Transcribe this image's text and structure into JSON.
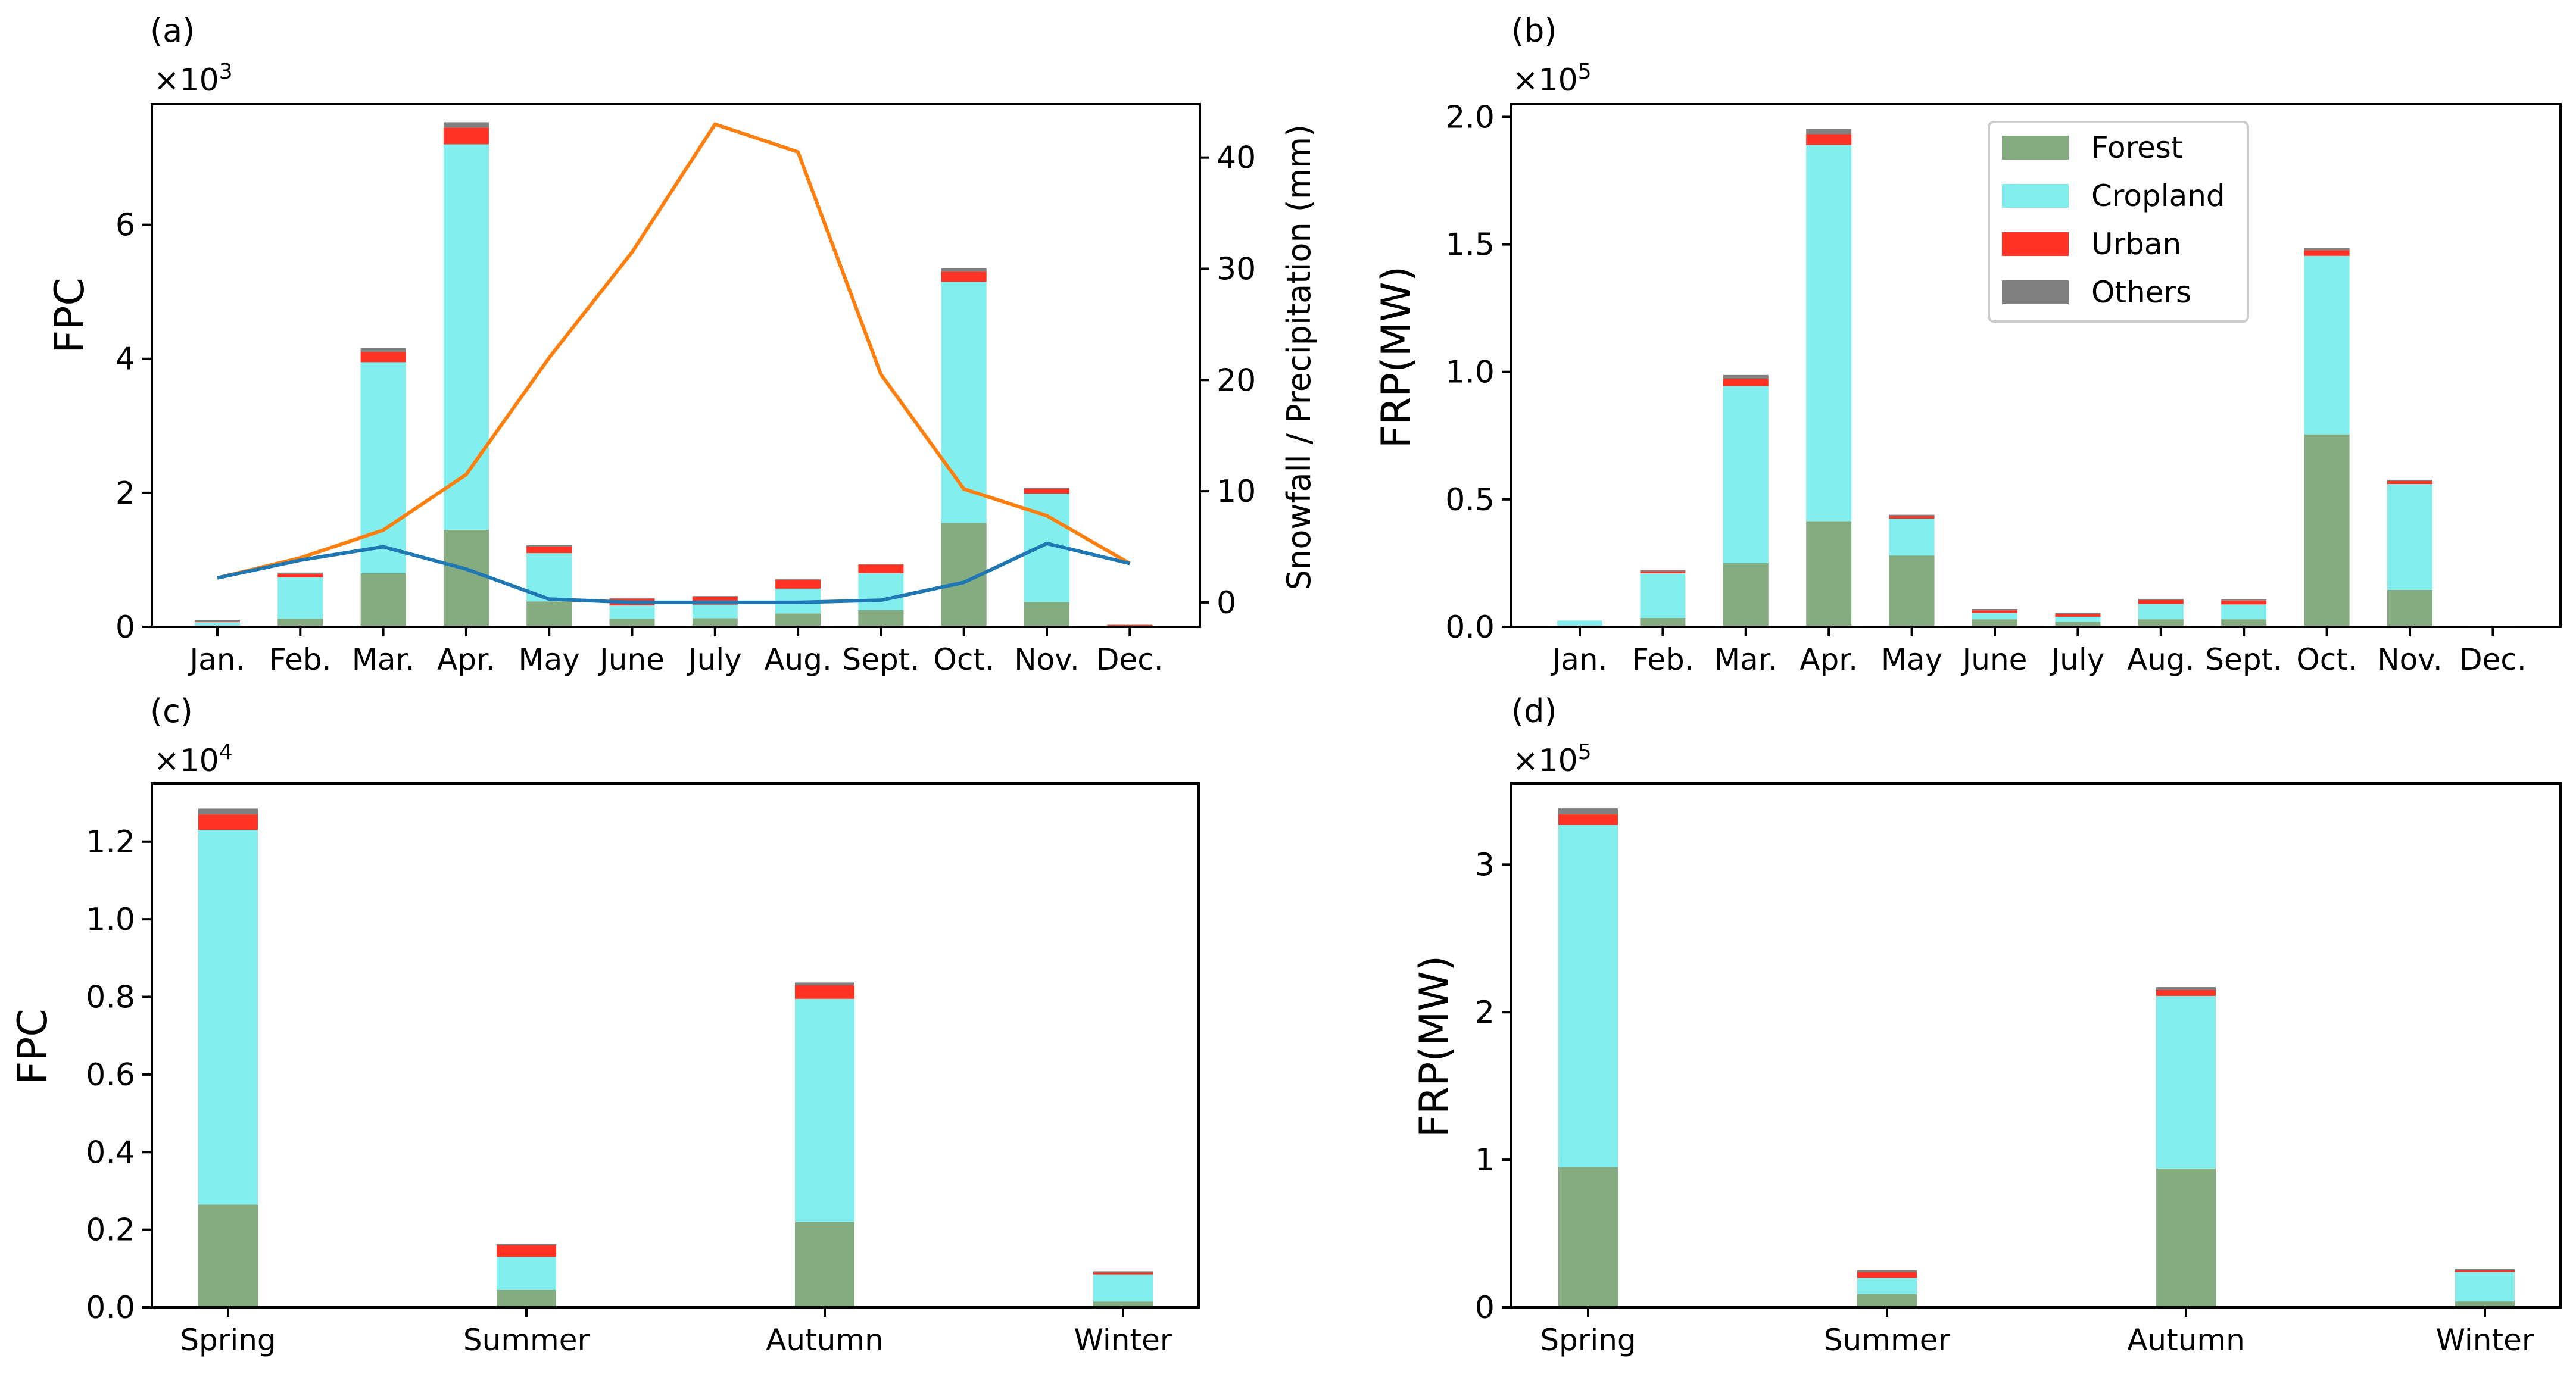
{
  "colors": {
    "forest": "#85ab80",
    "cropland": "#82eeee",
    "urban": "#ff3224",
    "others": "#808080",
    "precip": "#ff7f0e",
    "snowfall": "#1f77b4"
  },
  "legend": [
    "Forest",
    "Cropland",
    "Urban",
    "Others"
  ],
  "chart_data": [
    {
      "id": "a",
      "panel_label": "(a)",
      "type": "bar",
      "stacked": true,
      "title": "",
      "xlabel": "",
      "ylabel": "FPC",
      "scale_label": "×10",
      "scale_exp": "3",
      "ylim": [
        0,
        7.8
      ],
      "yticks": [
        0,
        2,
        4,
        6
      ],
      "categories": [
        "Jan.",
        "Feb.",
        "Mar.",
        "Apr.",
        "May",
        "June",
        "July",
        "Aug.",
        "Sept.",
        "Oct.",
        "Nov.",
        "Dec."
      ],
      "series": [
        {
          "name": "Forest",
          "values": [
            0.02,
            0.12,
            0.8,
            1.45,
            0.38,
            0.12,
            0.13,
            0.2,
            0.25,
            1.55,
            0.37,
            0.0
          ]
        },
        {
          "name": "Cropland",
          "values": [
            0.05,
            0.62,
            3.15,
            5.75,
            0.72,
            0.2,
            0.2,
            0.37,
            0.55,
            3.6,
            1.62,
            0.0
          ]
        },
        {
          "name": "Urban",
          "values": [
            0.01,
            0.05,
            0.15,
            0.25,
            0.1,
            0.1,
            0.12,
            0.13,
            0.13,
            0.15,
            0.07,
            0.03
          ]
        },
        {
          "name": "Others",
          "values": [
            0.02,
            0.02,
            0.06,
            0.08,
            0.02,
            0.01,
            0.01,
            0.01,
            0.01,
            0.05,
            0.02,
            0.0
          ]
        }
      ],
      "secondary_axis": {
        "ylabel": "Snowfall / Precipitation (mm)",
        "ylim": [
          -2.2,
          44.8
        ],
        "yticks": [
          0,
          10,
          20,
          30,
          40
        ],
        "lines": [
          {
            "name": "Precipitation",
            "values": [
              2.2,
              4.0,
              6.5,
              11.5,
              22.0,
              31.5,
              43.0,
              40.5,
              20.5,
              10.2,
              7.8,
              3.5
            ]
          },
          {
            "name": "Snowfall",
            "values": [
              2.2,
              3.8,
              5.0,
              3.0,
              0.3,
              0.0,
              0.0,
              0.0,
              0.2,
              1.8,
              5.3,
              3.5
            ]
          }
        ]
      }
    },
    {
      "id": "b",
      "panel_label": "(b)",
      "type": "bar",
      "stacked": true,
      "title": "",
      "xlabel": "",
      "ylabel": "FRP(MW)",
      "scale_label": "×10",
      "scale_exp": "5",
      "ylim": [
        0,
        2.05
      ],
      "yticks": [
        0.0,
        0.5,
        1.0,
        1.5,
        2.0
      ],
      "ytick_labels": [
        "0.0",
        "0.5",
        "1.0",
        "1.5",
        "2.0"
      ],
      "legend_position": "top-right",
      "categories": [
        "Jan.",
        "Feb.",
        "Mar.",
        "Apr.",
        "May",
        "June",
        "July",
        "Aug.",
        "Sept.",
        "Oct.",
        "Nov.",
        "Dec."
      ],
      "series": [
        {
          "name": "Forest",
          "values": [
            0.003,
            0.035,
            0.25,
            0.415,
            0.28,
            0.03,
            0.02,
            0.03,
            0.03,
            0.755,
            0.145,
            0.0
          ]
        },
        {
          "name": "Cropland",
          "values": [
            0.022,
            0.175,
            0.695,
            1.475,
            0.145,
            0.025,
            0.02,
            0.06,
            0.058,
            0.7,
            0.415,
            0.005
          ]
        },
        {
          "name": "Urban",
          "values": [
            0.0,
            0.008,
            0.028,
            0.042,
            0.01,
            0.01,
            0.01,
            0.015,
            0.015,
            0.022,
            0.012,
            0.0
          ]
        },
        {
          "name": "Others",
          "values": [
            0.0,
            0.005,
            0.015,
            0.022,
            0.005,
            0.005,
            0.005,
            0.005,
            0.005,
            0.01,
            0.005,
            0.0
          ]
        }
      ]
    },
    {
      "id": "c",
      "panel_label": "(c)",
      "type": "bar",
      "stacked": true,
      "title": "",
      "xlabel": "",
      "ylabel": "FPC",
      "scale_label": "×10",
      "scale_exp": "4",
      "ylim": [
        0,
        1.35
      ],
      "yticks": [
        0.0,
        0.2,
        0.4,
        0.6,
        0.8,
        1.0,
        1.2
      ],
      "ytick_labels": [
        "0.0",
        "0.2",
        "0.4",
        "0.6",
        "0.8",
        "1.0",
        "1.2"
      ],
      "categories": [
        "Spring",
        "Summer",
        "Autumn",
        "Winter"
      ],
      "series": [
        {
          "name": "Forest",
          "values": [
            0.265,
            0.045,
            0.22,
            0.015
          ]
        },
        {
          "name": "Cropland",
          "values": [
            0.965,
            0.085,
            0.575,
            0.07
          ]
        },
        {
          "name": "Urban",
          "values": [
            0.04,
            0.03,
            0.035,
            0.005
          ]
        },
        {
          "name": "Others",
          "values": [
            0.015,
            0.003,
            0.007,
            0.003
          ]
        }
      ]
    },
    {
      "id": "d",
      "panel_label": "(d)",
      "type": "bar",
      "stacked": true,
      "title": "",
      "xlabel": "",
      "ylabel": "FRP(MW)",
      "scale_label": "×10",
      "scale_exp": "5",
      "ylim": [
        0,
        3.55
      ],
      "yticks": [
        0,
        1,
        2,
        3
      ],
      "categories": [
        "Spring",
        "Summer",
        "Autumn",
        "Winter"
      ],
      "series": [
        {
          "name": "Forest",
          "values": [
            0.95,
            0.09,
            0.94,
            0.04
          ]
        },
        {
          "name": "Cropland",
          "values": [
            2.32,
            0.11,
            1.17,
            0.2
          ]
        },
        {
          "name": "Urban",
          "values": [
            0.07,
            0.04,
            0.04,
            0.01
          ]
        },
        {
          "name": "Others",
          "values": [
            0.04,
            0.01,
            0.02,
            0.01
          ]
        }
      ]
    }
  ]
}
